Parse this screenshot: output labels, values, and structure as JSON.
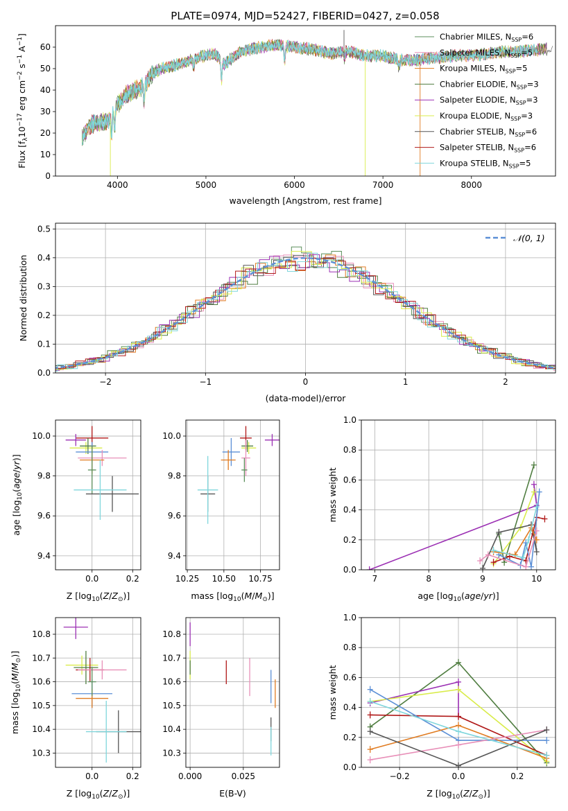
{
  "figure": {
    "title": "PLATE=0974, MJD=52427, FIBERID=0427, z=0.058"
  },
  "colors": {
    "chabrier_miles": "#5b8f5b",
    "salpeter_miles": "#e88fb8",
    "kroupa_miles": "#e07b20",
    "chabrier_elodie": "#4f7d40",
    "salpeter_elodie": "#9b2fb3",
    "kroupa_elodie": "#d9ec4a",
    "chabrier_stelib": "#555555",
    "salpeter_stelib": "#b01818",
    "kroupa_stelib": "#7fd6dc",
    "extra_blue": "#5b8fd6",
    "normal_curve": "#5b8fd6",
    "grid": "#b0b0b0"
  },
  "chart_data": [
    {
      "id": "spectrum",
      "type": "line",
      "xlabel": "wavelength [Angstrom, rest frame]",
      "ylabel": "Flux [f_λ 10^-17 erg cm^-2 s^-1 A^-1]",
      "xlim": [
        3300,
        8950
      ],
      "ylim": [
        0,
        70
      ],
      "xticks": [
        4000,
        5000,
        6000,
        7000,
        8000
      ],
      "yticks": [
        0,
        10,
        20,
        30,
        40,
        50,
        60
      ],
      "grid": false,
      "legend_position": "top-right",
      "legend": [
        {
          "label": "Chabrier MILES, N",
          "sub": "SSP",
          "suffix": "=6",
          "color_key": "chabrier_miles"
        },
        {
          "label": "Salpeter MILES, N",
          "sub": "SSP",
          "suffix": "=5",
          "color_key": "salpeter_miles"
        },
        {
          "label": "Kroupa MILES, N",
          "sub": "SSP",
          "suffix": "=5",
          "color_key": "kroupa_miles"
        },
        {
          "label": "Chabrier ELODIE, N",
          "sub": "SSP",
          "suffix": "=3",
          "color_key": "chabrier_elodie"
        },
        {
          "label": "Salpeter ELODIE, N",
          "sub": "SSP",
          "suffix": "=3",
          "color_key": "salpeter_elodie"
        },
        {
          "label": "Kroupa ELODIE, N",
          "sub": "SSP",
          "suffix": "=3",
          "color_key": "kroupa_elodie"
        },
        {
          "label": "Chabrier STELIB, N",
          "sub": "SSP",
          "suffix": "=6",
          "color_key": "chabrier_stelib"
        },
        {
          "label": "Salpeter STELIB, N",
          "sub": "SSP",
          "suffix": "=6",
          "color_key": "salpeter_stelib"
        },
        {
          "label": "Kroupa STELIB, N",
          "sub": "SSP",
          "suffix": "=5",
          "color_key": "kroupa_stelib"
        }
      ],
      "continuum": {
        "x": [
          3600,
          3700,
          3800,
          3900,
          4000,
          4100,
          4200,
          4300,
          4400,
          4500,
          4700,
          4900,
          5100,
          5200,
          5400,
          5600,
          5800,
          6000,
          6200,
          6400,
          6600,
          6800,
          7000,
          7200,
          7400,
          7600,
          7800,
          8000,
          8200,
          8400,
          8600,
          8800
        ],
        "y": [
          18,
          24,
          25,
          26,
          33,
          38,
          40,
          42,
          48,
          50,
          52,
          55,
          57,
          52,
          58,
          60,
          61,
          60,
          59,
          57,
          58,
          56,
          56,
          54,
          54,
          55,
          56,
          56,
          57,
          58,
          58,
          59
        ]
      },
      "features": [
        {
          "x": 3934,
          "depth": 10
        },
        {
          "x": 3968,
          "depth": 9
        },
        {
          "x": 4300,
          "depth": 8
        },
        {
          "x": 4861,
          "depth": 4
        },
        {
          "x": 5175,
          "depth": 9
        },
        {
          "x": 5890,
          "depth": 8
        },
        {
          "x": 6563,
          "depth": 3
        },
        {
          "x": 7180,
          "depth": 4
        }
      ],
      "spikes": [
        {
          "x": 3920,
          "y": 0,
          "color_key": "kroupa_elodie"
        },
        {
          "x": 6800,
          "y": 0,
          "color_key": "kroupa_elodie"
        },
        {
          "x": 7420,
          "y": 0,
          "color_key": "kroupa_miles"
        },
        {
          "x": 6560,
          "y": 68,
          "color_key": "chabrier_stelib"
        }
      ]
    },
    {
      "id": "residuals",
      "type": "line",
      "xlabel": "(data-model)/error",
      "ylabel": "Normed distribution",
      "xlim": [
        -2.5,
        2.5
      ],
      "ylim": [
        0,
        0.52
      ],
      "xticks": [
        -2,
        -1,
        0,
        1,
        2
      ],
      "xtick_labels": [
        "−2",
        "−1",
        "0",
        "1",
        "2"
      ],
      "yticks": [
        0.0,
        0.1,
        0.2,
        0.3,
        0.4,
        0.5
      ],
      "ytick_labels": [
        "0.0",
        "0.1",
        "0.2",
        "0.3",
        "0.4",
        "0.5"
      ],
      "grid": true,
      "legend_position": "top-right",
      "legend": [
        {
          "label": "𝒩(0, 1)",
          "color_key": "normal_curve",
          "dashed": true
        }
      ],
      "bin_width": 0.1,
      "normal": {
        "mu": 0,
        "sigma": 1
      }
    },
    {
      "id": "age_vs_Z",
      "type": "scatter",
      "xlabel": "Z [log10(Z/Z☉)]",
      "ylabel": "age [log10(age/yr)]",
      "xlim": [
        -0.18,
        0.24
      ],
      "ylim": [
        9.33,
        10.08
      ],
      "xticks": [
        0.0,
        0.2
      ],
      "xtick_labels": [
        "0.0",
        "0.2"
      ],
      "yticks": [
        9.4,
        9.6,
        9.8,
        10.0
      ],
      "ytick_labels": [
        "9.4",
        "9.6",
        "9.8",
        "10.0"
      ],
      "grid": true,
      "points": [
        {
          "x": 0.0,
          "y": 9.99,
          "xerr": 0.08,
          "yerr": 0.06,
          "color_key": "salpeter_stelib"
        },
        {
          "x": -0.08,
          "y": 9.98,
          "xerr": 0.05,
          "yerr": 0.03,
          "color_key": "salpeter_elodie"
        },
        {
          "x": -0.03,
          "y": 9.94,
          "xerr": 0.08,
          "yerr": 0.03,
          "color_key": "kroupa_elodie"
        },
        {
          "x": -0.02,
          "y": 9.95,
          "xerr": 0.04,
          "yerr": 0.04,
          "color_key": "chabrier_elodie"
        },
        {
          "x": 0.0,
          "y": 9.92,
          "xerr": 0.08,
          "yerr": 0.05,
          "color_key": "extra_blue"
        },
        {
          "x": 0.05,
          "y": 9.89,
          "xerr": 0.12,
          "yerr": 0.04,
          "color_key": "salpeter_miles"
        },
        {
          "x": 0.0,
          "y": 9.88,
          "xerr": 0.06,
          "yerr": 0.07,
          "color_key": "kroupa_miles"
        },
        {
          "x": 0.0,
          "y": 9.83,
          "xerr": 0.02,
          "yerr": 0.12,
          "color_key": "chabrier_miles"
        },
        {
          "x": 0.1,
          "y": 9.71,
          "xerr": 0.13,
          "yerr": 0.09,
          "color_key": "chabrier_stelib"
        },
        {
          "x": 0.04,
          "y": 9.73,
          "xerr": 0.13,
          "yerr": 0.15,
          "color_key": "kroupa_stelib"
        }
      ]
    },
    {
      "id": "age_vs_mass",
      "type": "scatter",
      "xlabel": "mass [log10(M/M☉)]",
      "ylabel": "",
      "xlim": [
        10.24,
        10.88
      ],
      "ylim": [
        9.33,
        10.08
      ],
      "xticks": [
        10.25,
        10.5,
        10.75
      ],
      "xtick_labels": [
        "10.25",
        "10.50",
        "10.75"
      ],
      "yticks": [
        9.4,
        9.6,
        9.8,
        10.0
      ],
      "ytick_labels": [
        "9.4",
        "9.6",
        "9.8",
        "10.0"
      ],
      "grid": true,
      "points": [
        {
          "x": 10.83,
          "y": 9.98,
          "xerr": 0.05,
          "yerr": 0.03,
          "color_key": "salpeter_elodie"
        },
        {
          "x": 10.65,
          "y": 9.99,
          "xerr": 0.04,
          "yerr": 0.06,
          "color_key": "salpeter_stelib"
        },
        {
          "x": 10.67,
          "y": 9.94,
          "xerr": 0.05,
          "yerr": 0.03,
          "color_key": "kroupa_elodie"
        },
        {
          "x": 10.66,
          "y": 9.95,
          "xerr": 0.04,
          "yerr": 0.03,
          "color_key": "chabrier_elodie"
        },
        {
          "x": 10.55,
          "y": 9.92,
          "xerr": 0.06,
          "yerr": 0.07,
          "color_key": "extra_blue"
        },
        {
          "x": 10.53,
          "y": 9.88,
          "xerr": 0.05,
          "yerr": 0.05,
          "color_key": "kroupa_miles"
        },
        {
          "x": 10.65,
          "y": 9.89,
          "xerr": 0.03,
          "yerr": 0.09,
          "color_key": "salpeter_miles"
        },
        {
          "x": 10.64,
          "y": 9.83,
          "xerr": 0.02,
          "yerr": 0.06,
          "color_key": "chabrier_miles"
        },
        {
          "x": 10.39,
          "y": 9.71,
          "xerr": 0.05,
          "yerr": 0.09,
          "color_key": "chabrier_stelib"
        },
        {
          "x": 10.39,
          "y": 9.73,
          "xerr": 0.07,
          "yerr": 0.17,
          "color_key": "kroupa_stelib"
        }
      ]
    },
    {
      "id": "weight_vs_age",
      "type": "line",
      "xlabel": "age [log10(age/yr)]",
      "ylabel": "mass weight",
      "xlim": [
        6.75,
        10.35
      ],
      "ylim": [
        0,
        1.0
      ],
      "xticks": [
        7,
        8,
        9,
        10
      ],
      "xtick_labels": [
        "7",
        "8",
        "9",
        "10"
      ],
      "yticks": [
        0.0,
        0.2,
        0.4,
        0.6,
        0.8,
        1.0
      ],
      "ytick_labels": [
        "0.0",
        "0.2",
        "0.4",
        "0.6",
        "0.8",
        "1.0"
      ],
      "grid": true,
      "series": [
        {
          "color_key": "salpeter_elodie",
          "x": [
            6.9,
            10.0,
            9.95
          ],
          "y": [
            0.0,
            0.43,
            0.57
          ]
        },
        {
          "color_key": "chabrier_elodie",
          "x": [
            9.3,
            9.4,
            9.95
          ],
          "y": [
            0.24,
            0.05,
            0.7
          ]
        },
        {
          "color_key": "kroupa_elodie",
          "x": [
            9.2,
            9.7,
            9.95
          ],
          "y": [
            0.04,
            0.28,
            0.52
          ]
        },
        {
          "color_key": "chabrier_stelib",
          "x": [
            9.0,
            9.3,
            9.9,
            10.0,
            9.95
          ],
          "y": [
            0.01,
            0.25,
            0.3,
            0.12,
            0.24
          ]
        },
        {
          "color_key": "salpeter_stelib",
          "x": [
            9.2,
            9.5,
            9.8,
            10.0,
            10.15
          ],
          "y": [
            0.05,
            0.09,
            0.06,
            0.35,
            0.34
          ]
        },
        {
          "color_key": "extra_blue",
          "x": [
            9.3,
            9.7,
            9.8,
            9.9,
            10.05
          ],
          "y": [
            0.1,
            0.03,
            0.18,
            0.02,
            0.52
          ]
        },
        {
          "color_key": "kroupa_miles",
          "x": [
            9.2,
            9.6,
            9.9,
            10.0
          ],
          "y": [
            0.12,
            0.1,
            0.28,
            0.2
          ]
        },
        {
          "color_key": "salpeter_miles",
          "x": [
            8.95,
            9.1,
            9.8,
            10.0
          ],
          "y": [
            0.06,
            0.1,
            0.02,
            0.26
          ]
        },
        {
          "color_key": "kroupa_stelib",
          "x": [
            9.2,
            9.75,
            9.85,
            10.0
          ],
          "y": [
            0.13,
            0.08,
            0.2,
            0.42
          ]
        }
      ]
    },
    {
      "id": "mass_vs_Z",
      "type": "scatter",
      "xlabel": "Z [log10(Z/Z☉)]",
      "ylabel": "mass [log10(M/M☉)]",
      "xlim": [
        -0.18,
        0.24
      ],
      "ylim": [
        10.24,
        10.87
      ],
      "xticks": [
        0.0,
        0.2
      ],
      "xtick_labels": [
        "0.0",
        "0.2"
      ],
      "yticks": [
        10.3,
        10.4,
        10.5,
        10.6,
        10.7,
        10.8
      ],
      "ytick_labels": [
        "10.3",
        "10.4",
        "10.5",
        "10.6",
        "10.7",
        "10.8"
      ],
      "grid": true,
      "points": [
        {
          "x": -0.08,
          "y": 10.83,
          "xerr": 0.06,
          "yerr": 0.05,
          "color_key": "salpeter_elodie"
        },
        {
          "x": -0.05,
          "y": 10.67,
          "xerr": 0.08,
          "yerr": 0.04,
          "color_key": "kroupa_elodie"
        },
        {
          "x": -0.03,
          "y": 10.66,
          "xerr": 0.06,
          "yerr": 0.07,
          "color_key": "chabrier_elodie"
        },
        {
          "x": -0.01,
          "y": 10.65,
          "xerr": 0.07,
          "yerr": 0.05,
          "color_key": "salpeter_stelib"
        },
        {
          "x": 0.05,
          "y": 10.65,
          "xerr": 0.12,
          "yerr": 0.04,
          "color_key": "salpeter_miles"
        },
        {
          "x": 0.0,
          "y": 10.55,
          "xerr": 0.1,
          "yerr": 0.06,
          "color_key": "extra_blue"
        },
        {
          "x": 0.0,
          "y": 10.53,
          "xerr": 0.08,
          "yerr": 0.04,
          "color_key": "kroupa_miles"
        },
        {
          "x": 0.0,
          "y": 10.6,
          "xerr": 0.02,
          "yerr": 0.06,
          "color_key": "chabrier_miles"
        },
        {
          "x": 0.13,
          "y": 10.39,
          "xerr": 0.11,
          "yerr": 0.09,
          "color_key": "chabrier_stelib"
        },
        {
          "x": 0.07,
          "y": 10.39,
          "xerr": 0.1,
          "yerr": 0.13,
          "color_key": "kroupa_stelib"
        }
      ]
    },
    {
      "id": "mass_vs_ebv",
      "type": "scatter",
      "xlabel": "E(B-V)",
      "ylabel": "",
      "xlim": [
        -0.002,
        0.042
      ],
      "ylim": [
        10.24,
        10.87
      ],
      "xticks": [
        0.0,
        0.025
      ],
      "xtick_labels": [
        "0.000",
        "0.025"
      ],
      "yticks": [
        10.3,
        10.4,
        10.5,
        10.6,
        10.7,
        10.8
      ],
      "ytick_labels": [
        "10.3",
        "10.4",
        "10.5",
        "10.6",
        "10.7",
        "10.8"
      ],
      "grid": true,
      "points": [
        {
          "x": 0.0,
          "y": 10.8,
          "xerr": 0,
          "yerr": 0.05,
          "color_key": "salpeter_elodie"
        },
        {
          "x": 0.0,
          "y": 10.67,
          "xerr": 0,
          "yerr": 0.06,
          "color_key": "kroupa_elodie"
        },
        {
          "x": 0.0,
          "y": 10.66,
          "xerr": 0,
          "yerr": 0.03,
          "color_key": "chabrier_elodie"
        },
        {
          "x": 0.017,
          "y": 10.64,
          "xerr": 0,
          "yerr": 0.05,
          "color_key": "salpeter_stelib"
        },
        {
          "x": 0.028,
          "y": 10.62,
          "xerr": 0,
          "yerr": 0.08,
          "color_key": "salpeter_miles"
        },
        {
          "x": 0.038,
          "y": 10.58,
          "xerr": 0,
          "yerr": 0.07,
          "color_key": "extra_blue"
        },
        {
          "x": 0.04,
          "y": 10.55,
          "xerr": 0,
          "yerr": 0.06,
          "color_key": "kroupa_miles"
        },
        {
          "x": 0.038,
          "y": 10.4,
          "xerr": 0,
          "yerr": 0.05,
          "color_key": "chabrier_stelib"
        },
        {
          "x": 0.038,
          "y": 10.35,
          "xerr": 0,
          "yerr": 0.06,
          "color_key": "kroupa_stelib"
        }
      ]
    },
    {
      "id": "weight_vs_Z",
      "type": "line",
      "xlabel": "Z [log10(Z/Z☉)]",
      "ylabel": "mass weight",
      "xlim": [
        -0.33,
        0.33
      ],
      "ylim": [
        0,
        1.0
      ],
      "xticks": [
        -0.2,
        0.0,
        0.2
      ],
      "xtick_labels": [
        "−0.2",
        "0.0",
        "0.2"
      ],
      "yticks": [
        0.0,
        0.2,
        0.4,
        0.6,
        0.8,
        1.0
      ],
      "ytick_labels": [
        "0.0",
        "0.2",
        "0.4",
        "0.6",
        "0.8",
        "1.0"
      ],
      "grid": true,
      "series": [
        {
          "color_key": "chabrier_elodie",
          "x": [
            -0.3,
            0.0,
            0.3
          ],
          "y": [
            0.27,
            0.7,
            0.03
          ]
        },
        {
          "color_key": "salpeter_elodie",
          "x": [
            -0.3,
            0.0,
            0.0
          ],
          "y": [
            0.43,
            0.57,
            0.34
          ]
        },
        {
          "color_key": "kroupa_elodie",
          "x": [
            -0.3,
            0.0,
            0.3
          ],
          "y": [
            0.44,
            0.52,
            0.04
          ]
        },
        {
          "color_key": "salpeter_stelib",
          "x": [
            -0.3,
            0.0,
            0.3
          ],
          "y": [
            0.35,
            0.34,
            0.08
          ]
        },
        {
          "color_key": "extra_blue",
          "x": [
            -0.3,
            0.0,
            0.3
          ],
          "y": [
            0.52,
            0.18,
            0.18
          ]
        },
        {
          "color_key": "kroupa_miles",
          "x": [
            -0.3,
            0.0,
            0.3
          ],
          "y": [
            0.12,
            0.28,
            0.06
          ]
        },
        {
          "color_key": "salpeter_miles",
          "x": [
            -0.3,
            0.0,
            0.3
          ],
          "y": [
            0.05,
            0.15,
            0.25
          ]
        },
        {
          "color_key": "chabrier_stelib",
          "x": [
            -0.3,
            0.0,
            0.3
          ],
          "y": [
            0.24,
            0.01,
            0.25
          ]
        },
        {
          "color_key": "kroupa_stelib",
          "x": [
            -0.3,
            0.0,
            0.3
          ],
          "y": [
            0.44,
            0.24,
            0.08
          ]
        }
      ]
    }
  ]
}
